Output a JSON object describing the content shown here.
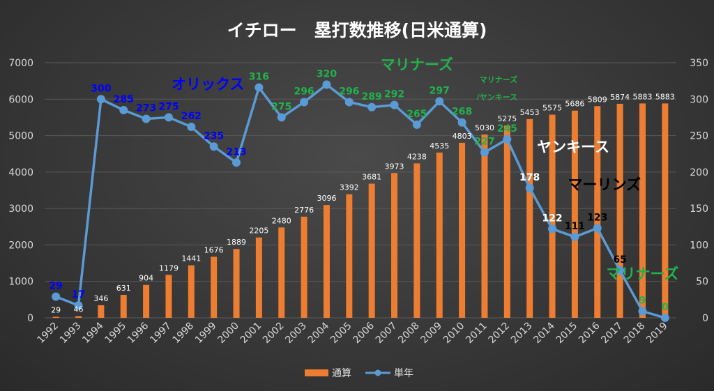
{
  "colors": {
    "bar": "#ed7d31",
    "line": "#5b9bd5",
    "blue_label": "#0000ff",
    "green_label": "#22b14c",
    "white_label": "#ffffff",
    "black_label": "#000000"
  },
  "chart_data": {
    "type": "bar+line",
    "title": "イチロー　塁打数推移(日米通算)",
    "categories": [
      "1992",
      "1993",
      "1994",
      "1995",
      "1996",
      "1997",
      "1998",
      "1999",
      "2000",
      "2001",
      "2002",
      "2003",
      "2004",
      "2005",
      "2006",
      "2007",
      "2008",
      "2009",
      "2010",
      "2011",
      "2012",
      "2013",
      "2014",
      "2015",
      "2016",
      "2017",
      "2018",
      "2019"
    ],
    "series": [
      {
        "name": "通算",
        "kind": "bar",
        "axis": "left",
        "values": [
          29,
          46,
          346,
          631,
          904,
          1179,
          1441,
          1676,
          1889,
          2205,
          2480,
          2776,
          3096,
          3392,
          3681,
          3973,
          4238,
          4535,
          4803,
          5030,
          5275,
          5453,
          5575,
          5686,
          5809,
          5874,
          5883,
          5883
        ]
      },
      {
        "name": "単年",
        "kind": "line",
        "axis": "right",
        "values": [
          29,
          17,
          300,
          285,
          273,
          275,
          262,
          235,
          213,
          316,
          275,
          296,
          320,
          296,
          289,
          292,
          265,
          297,
          268,
          227,
          245,
          178,
          122,
          111,
          123,
          65,
          9,
          0
        ],
        "label_colors": [
          "blue",
          "blue",
          "blue",
          "blue",
          "blue",
          "blue",
          "blue",
          "blue",
          "blue",
          "green",
          "green",
          "green",
          "green",
          "green",
          "green",
          "green",
          "green",
          "green",
          "green",
          "green",
          "green",
          "white",
          "white",
          "black",
          "black",
          "black",
          "green",
          "green"
        ]
      }
    ],
    "y_left": {
      "min": 0,
      "max": 7000,
      "step": 1000,
      "ticks": [
        "0",
        "1000",
        "2000",
        "3000",
        "4000",
        "5000",
        "6000",
        "7000"
      ]
    },
    "y_right": {
      "min": 0,
      "max": 350,
      "step": 50,
      "ticks": [
        "0",
        "50",
        "100",
        "150",
        "200",
        "250",
        "300",
        "350"
      ]
    },
    "grid": true,
    "legend": {
      "placement": "bottom",
      "items": [
        "通算",
        "単年"
      ]
    },
    "annotations": [
      {
        "text": "オリックス",
        "color": "blue"
      },
      {
        "text": "マリナーズ",
        "color": "green"
      },
      {
        "text": "マリナーズ",
        "color": "green_small"
      },
      {
        "text": "/ヤンキース",
        "color": "green_small"
      },
      {
        "text": "ヤンキース",
        "color": "white"
      },
      {
        "text": "マーリンズ",
        "color": "black"
      },
      {
        "text": "マリナーズ",
        "color": "green"
      }
    ]
  }
}
